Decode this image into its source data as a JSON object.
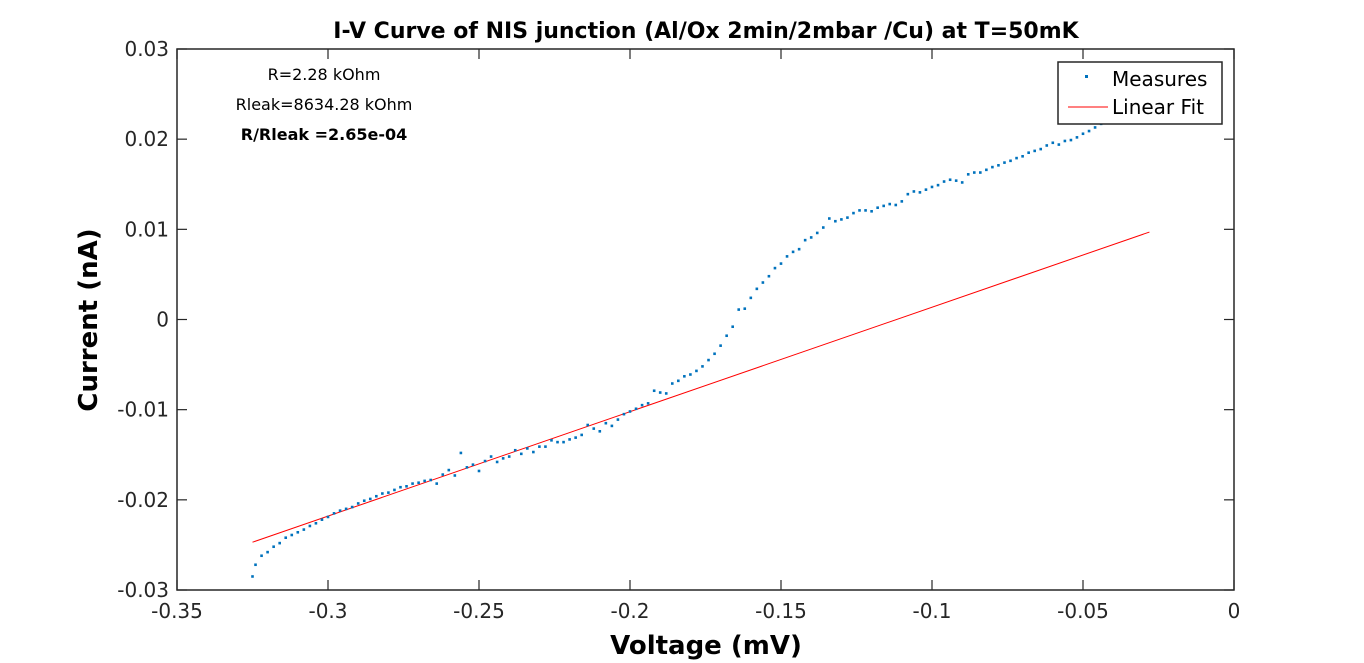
{
  "chart_data": {
    "type": "scatter",
    "title": "I-V Curve of NIS junction (Al/Ox 2min/2mbar /Cu) at T=50mK",
    "xlabel": "Voltage (mV)",
    "ylabel": "Current (nA)",
    "xlim": [
      -0.35,
      0
    ],
    "ylim": [
      -0.03,
      0.03
    ],
    "xticks": [
      -0.35,
      -0.3,
      -0.25,
      -0.2,
      -0.15,
      -0.1,
      -0.05,
      0
    ],
    "xtick_labels": [
      "-0.35",
      "-0.3",
      "-0.25",
      "-0.2",
      "-0.15",
      "-0.1",
      "-0.05",
      "0"
    ],
    "yticks": [
      -0.03,
      -0.02,
      -0.01,
      0,
      0.01,
      0.02,
      0.03
    ],
    "ytick_labels": [
      "-0.03",
      "-0.02",
      "-0.01",
      "0",
      "0.01",
      "0.02",
      "0.03"
    ],
    "grid": false,
    "legend_position": "top-right",
    "annotations": [
      "R=2.28 kOhm",
      "Rleak=8634.28 kOhm",
      "R/Rleak =2.65e-04"
    ],
    "series": [
      {
        "name": "Measures",
        "type": "scatter",
        "color": "#0072BD",
        "points": [
          [
            -0.325,
            -0.0285
          ],
          [
            -0.324,
            -0.0272
          ],
          [
            -0.322,
            -0.0262
          ],
          [
            -0.32,
            -0.0258
          ],
          [
            -0.318,
            -0.0252
          ],
          [
            -0.316,
            -0.0248
          ],
          [
            -0.314,
            -0.0242
          ],
          [
            -0.312,
            -0.0239
          ],
          [
            -0.31,
            -0.0236
          ],
          [
            -0.308,
            -0.0233
          ],
          [
            -0.306,
            -0.0229
          ],
          [
            -0.304,
            -0.0226
          ],
          [
            -0.302,
            -0.0222
          ],
          [
            -0.3,
            -0.0219
          ],
          [
            -0.298,
            -0.0215
          ],
          [
            -0.296,
            -0.0212
          ],
          [
            -0.294,
            -0.021
          ],
          [
            -0.292,
            -0.0208
          ],
          [
            -0.29,
            -0.0204
          ],
          [
            -0.288,
            -0.0201
          ],
          [
            -0.286,
            -0.0199
          ],
          [
            -0.284,
            -0.0196
          ],
          [
            -0.282,
            -0.0193
          ],
          [
            -0.28,
            -0.0192
          ],
          [
            -0.278,
            -0.0189
          ],
          [
            -0.276,
            -0.0186
          ],
          [
            -0.274,
            -0.0185
          ],
          [
            -0.272,
            -0.0182
          ],
          [
            -0.27,
            -0.0181
          ],
          [
            -0.268,
            -0.0179
          ],
          [
            -0.266,
            -0.0178
          ],
          [
            -0.264,
            -0.0182
          ],
          [
            -0.262,
            -0.0172
          ],
          [
            -0.26,
            -0.0167
          ],
          [
            -0.258,
            -0.0173
          ],
          [
            -0.256,
            -0.0148
          ],
          [
            -0.254,
            -0.0164
          ],
          [
            -0.252,
            -0.0161
          ],
          [
            -0.25,
            -0.0168
          ],
          [
            -0.248,
            -0.0157
          ],
          [
            -0.246,
            -0.0152
          ],
          [
            -0.244,
            -0.0158
          ],
          [
            -0.242,
            -0.0154
          ],
          [
            -0.24,
            -0.0152
          ],
          [
            -0.238,
            -0.0145
          ],
          [
            -0.236,
            -0.0149
          ],
          [
            -0.234,
            -0.0143
          ],
          [
            -0.232,
            -0.0147
          ],
          [
            -0.23,
            -0.0141
          ],
          [
            -0.228,
            -0.0141
          ],
          [
            -0.226,
            -0.0134
          ],
          [
            -0.224,
            -0.0136
          ],
          [
            -0.222,
            -0.0136
          ],
          [
            -0.22,
            -0.0133
          ],
          [
            -0.218,
            -0.0131
          ],
          [
            -0.216,
            -0.0128
          ],
          [
            -0.214,
            -0.0117
          ],
          [
            -0.212,
            -0.0121
          ],
          [
            -0.21,
            -0.0124
          ],
          [
            -0.208,
            -0.0115
          ],
          [
            -0.206,
            -0.0118
          ],
          [
            -0.204,
            -0.0111
          ],
          [
            -0.202,
            -0.0105
          ],
          [
            -0.2,
            -0.0102
          ],
          [
            -0.198,
            -0.0099
          ],
          [
            -0.196,
            -0.0095
          ],
          [
            -0.194,
            -0.0093
          ],
          [
            -0.192,
            -0.0079
          ],
          [
            -0.19,
            -0.0081
          ],
          [
            -0.188,
            -0.0082
          ],
          [
            -0.186,
            -0.0071
          ],
          [
            -0.184,
            -0.0068
          ],
          [
            -0.182,
            -0.0063
          ],
          [
            -0.18,
            -0.0061
          ],
          [
            -0.178,
            -0.0057
          ],
          [
            -0.176,
            -0.0052
          ],
          [
            -0.174,
            -0.0045
          ],
          [
            -0.172,
            -0.0038
          ],
          [
            -0.17,
            -0.0029
          ],
          [
            -0.168,
            -0.0018
          ],
          [
            -0.166,
            -0.0008
          ],
          [
            -0.164,
            0.0011
          ],
          [
            -0.162,
            0.0012
          ],
          [
            -0.16,
            0.0024
          ],
          [
            -0.158,
            0.0034
          ],
          [
            -0.156,
            0.0041
          ],
          [
            -0.154,
            0.0048
          ],
          [
            -0.152,
            0.0057
          ],
          [
            -0.15,
            0.0062
          ],
          [
            -0.148,
            0.007
          ],
          [
            -0.146,
            0.0075
          ],
          [
            -0.144,
            0.0078
          ],
          [
            -0.142,
            0.0088
          ],
          [
            -0.14,
            0.0091
          ],
          [
            -0.138,
            0.0096
          ],
          [
            -0.136,
            0.0102
          ],
          [
            -0.134,
            0.0112
          ],
          [
            -0.132,
            0.0109
          ],
          [
            -0.13,
            0.0111
          ],
          [
            -0.128,
            0.0113
          ],
          [
            -0.126,
            0.0118
          ],
          [
            -0.124,
            0.0121
          ],
          [
            -0.122,
            0.0121
          ],
          [
            -0.12,
            0.012
          ],
          [
            -0.118,
            0.0124
          ],
          [
            -0.116,
            0.0126
          ],
          [
            -0.114,
            0.0128
          ],
          [
            -0.112,
            0.0127
          ],
          [
            -0.11,
            0.0131
          ],
          [
            -0.108,
            0.0139
          ],
          [
            -0.106,
            0.0142
          ],
          [
            -0.104,
            0.0141
          ],
          [
            -0.102,
            0.0144
          ],
          [
            -0.1,
            0.0147
          ],
          [
            -0.098,
            0.0149
          ],
          [
            -0.096,
            0.0153
          ],
          [
            -0.094,
            0.0155
          ],
          [
            -0.092,
            0.0154
          ],
          [
            -0.09,
            0.0152
          ],
          [
            -0.088,
            0.0161
          ],
          [
            -0.086,
            0.0163
          ],
          [
            -0.084,
            0.0163
          ],
          [
            -0.082,
            0.0166
          ],
          [
            -0.08,
            0.0169
          ],
          [
            -0.078,
            0.0171
          ],
          [
            -0.076,
            0.0174
          ],
          [
            -0.074,
            0.0176
          ],
          [
            -0.072,
            0.0179
          ],
          [
            -0.07,
            0.0181
          ],
          [
            -0.068,
            0.0185
          ],
          [
            -0.066,
            0.0187
          ],
          [
            -0.064,
            0.0189
          ],
          [
            -0.062,
            0.0193
          ],
          [
            -0.06,
            0.0196
          ],
          [
            -0.058,
            0.0194
          ],
          [
            -0.056,
            0.0198
          ],
          [
            -0.054,
            0.0199
          ],
          [
            -0.052,
            0.0202
          ],
          [
            -0.05,
            0.0206
          ],
          [
            -0.048,
            0.0209
          ],
          [
            -0.046,
            0.0213
          ],
          [
            -0.044,
            0.0217
          ],
          [
            -0.042,
            0.022
          ],
          [
            -0.04,
            0.0223
          ]
        ]
      },
      {
        "name": "Linear Fit",
        "type": "line",
        "color": "#FF0000",
        "points": [
          [
            -0.325,
            -0.0247
          ],
          [
            -0.028,
            0.0097
          ]
        ]
      }
    ]
  }
}
